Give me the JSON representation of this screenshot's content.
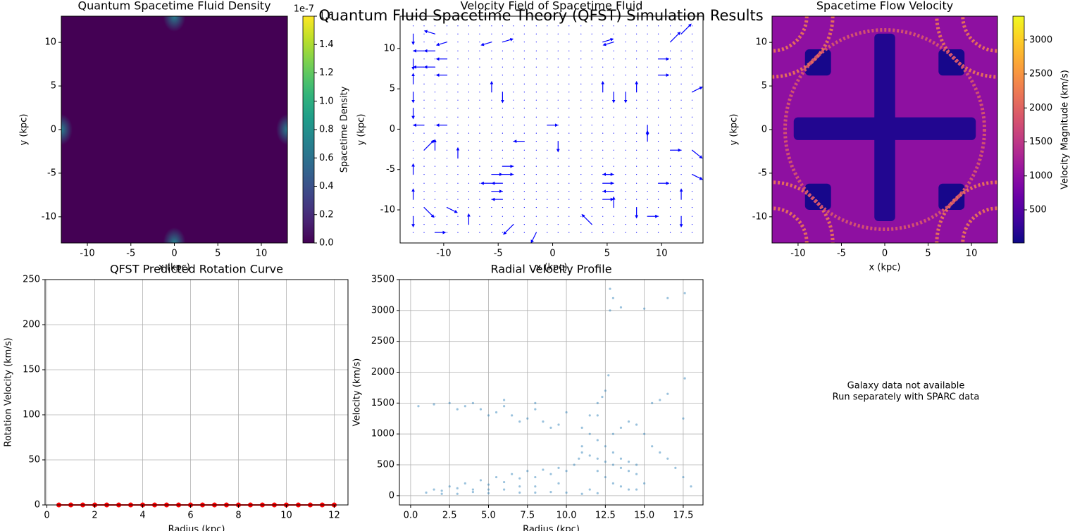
{
  "suptitle": "Quantum Fluid Spacetime Theory (QFST) Simulation Results",
  "chart_data": [
    {
      "type": "heatmap",
      "title": "Quantum Spacetime Fluid Density",
      "xlabel": "x (kpc)",
      "ylabel": "y (kpc)",
      "xlim": [
        -13,
        13
      ],
      "ylim": [
        -13,
        13
      ],
      "xticks": [
        -10,
        -5,
        0,
        5,
        10
      ],
      "yticks": [
        -10,
        -5,
        0,
        5,
        10
      ],
      "colormap": "viridis",
      "clim": [
        0,
        1.6
      ],
      "cticks": [
        {
          "value": 0,
          "label": "0.0"
        },
        0.2,
        0.4,
        0.6,
        0.8,
        {
          "value": 1,
          "label": "1.0"
        },
        1.2,
        1.4,
        1.6
      ],
      "offset_text": "1e-7",
      "clabel": "Spacetime Density",
      "background_value": 0,
      "peak_x": [
        0,
        0,
        13,
        -13
      ],
      "peak_y": [
        13,
        -13,
        0,
        0
      ],
      "peak_values": [
        0.7,
        0.7,
        0.7,
        0.7
      ]
    },
    {
      "type": "quiver",
      "title": "Velocity Field of Spacetime Fluid",
      "xlabel": "x (kpc)",
      "ylabel": "y (kpc)",
      "xlim": [
        -14,
        13.8
      ],
      "ylim": [
        -14.1,
        14
      ],
      "xticks": [
        -10,
        -5,
        0,
        5,
        10
      ],
      "yticks": [
        -10,
        -5,
        0,
        5,
        10
      ],
      "color": "#0000ff",
      "grid_x": [
        -12.8,
        -11.8,
        -10.8,
        -9.7,
        -8.7,
        -7.7,
        -6.7,
        -5.6,
        -4.6,
        -3.6,
        -2.6,
        -1.5,
        -0.5,
        0.5,
        1.5,
        2.6,
        3.6,
        4.6,
        5.6,
        6.7,
        7.7,
        8.7,
        9.7,
        10.8,
        11.8,
        12.8
      ],
      "grid_y": [
        -12.8,
        -11.8,
        -10.8,
        -9.7,
        -8.7,
        -7.7,
        -6.7,
        -5.6,
        -4.6,
        -3.6,
        -2.6,
        -1.5,
        -0.5,
        0.5,
        1.5,
        2.6,
        3.6,
        4.6,
        5.6,
        6.7,
        7.7,
        8.7,
        9.7,
        10.8,
        11.8,
        12.8
      ],
      "arrow_x": [
        -12.8,
        -12.8,
        -12.8,
        -12.8,
        -12.8,
        -12.8,
        -12.8,
        -12.8,
        -11.8,
        -11.8,
        -11.8,
        -11.8,
        -11.8,
        -10.8,
        -10.8,
        -10.8,
        -9.7,
        -9.7,
        -9.7,
        -9.7,
        -10.8,
        -8.7,
        -10.8,
        -9.7,
        -7.7,
        -5.6,
        -4.6,
        -5.6,
        -4.6,
        -5.6,
        -4.6,
        -4.6,
        -4.6,
        -5.6,
        -5.6,
        -4.6,
        -2.6,
        -0.5,
        0.5,
        -1.5,
        -3.6,
        4.6,
        5.6,
        4.6,
        5.6,
        4.6,
        5.6,
        4.6,
        5.6,
        4.6,
        5.6,
        3.6,
        7.7,
        8.7,
        9.7,
        9.7,
        10.8,
        11.8,
        12.8,
        12.8,
        12.8,
        11.8,
        11.8,
        10.8,
        9.7,
        8.7,
        8.7,
        7.7,
        6.7
      ],
      "arrow_y": [
        11.8,
        8.7,
        5.6,
        4.6,
        2.6,
        -5.6,
        -8.7,
        -10.8,
        9.7,
        7.7,
        0.5,
        -2.6,
        -9.7,
        11.8,
        9.7,
        7.7,
        10.8,
        8.7,
        6.7,
        0.5,
        -2.6,
        -3.6,
        -12.8,
        -9.7,
        -11.8,
        -5.6,
        -5.6,
        -6.7,
        -6.7,
        -7.7,
        -8.7,
        -4.6,
        4.6,
        4.6,
        10.8,
        10.8,
        -1.5,
        0.5,
        -1.5,
        -12.8,
        -11.8,
        -5.6,
        -5.6,
        -6.7,
        -7.7,
        -8.7,
        -9.7,
        10.8,
        10.8,
        4.6,
        4.6,
        -11.8,
        -9.7,
        -10.8,
        6.7,
        8.7,
        10.8,
        11.8,
        4.6,
        -2.6,
        -5.6,
        -8.7,
        -10.8,
        -2.6,
        -6.7,
        -1.5,
        0.5,
        4.6,
        4.6
      ],
      "u": [
        0,
        0,
        0,
        0,
        0,
        0,
        0,
        0,
        -1,
        -1,
        -1,
        1,
        1,
        -1,
        -1,
        -1,
        -1,
        -1,
        -1,
        -1,
        0,
        0,
        1,
        1,
        0,
        1,
        1,
        -1,
        -1,
        1,
        -1,
        1,
        0,
        0,
        -1,
        1,
        -1,
        1,
        0,
        -0.5,
        -1,
        1,
        -1,
        1,
        -1,
        1,
        0,
        1,
        -1,
        0,
        0,
        -1,
        0,
        1,
        1,
        1,
        1,
        1,
        1,
        1,
        1,
        0,
        0,
        1,
        1,
        0,
        0,
        0,
        0
      ],
      "v": [
        -1,
        -1,
        1,
        -1,
        -1,
        1,
        1,
        -1,
        0,
        0,
        0,
        1,
        -1,
        0.3,
        0,
        0,
        -0.3,
        0,
        0,
        0,
        1,
        1,
        0,
        -0.5,
        1,
        0,
        0,
        0,
        0,
        0,
        0,
        0,
        -1,
        1,
        -0.3,
        0.3,
        0,
        0,
        -1,
        -1,
        -1,
        0,
        0,
        0,
        0,
        0,
        1,
        0.3,
        -0.3,
        1,
        -1,
        1,
        -1,
        0,
        0,
        0,
        1,
        1,
        0.5,
        -0.8,
        -0.5,
        1,
        -1,
        0,
        0,
        1,
        -1,
        1,
        -1
      ]
    },
    {
      "type": "heatmap",
      "title": "Spacetime Flow Velocity",
      "xlabel": "x (kpc)",
      "ylabel": "y (kpc)",
      "xlim": [
        -13,
        13
      ],
      "ylim": [
        -13,
        13
      ],
      "xticks": [
        -10,
        -5,
        0,
        5,
        10
      ],
      "yticks": [
        -10,
        -5,
        0,
        5,
        10
      ],
      "colormap": "plasma",
      "clim": [
        13,
        3350
      ],
      "cticks": [
        500,
        1000,
        1500,
        2000,
        2500,
        3000
      ],
      "clabel": "Velocity Magnitude (km/s)",
      "background_value": 1000,
      "patches": [
        {
          "x0": -1.2,
          "x1": 1.2,
          "y0": -10.5,
          "y1": 11,
          "value": 150
        },
        {
          "x0": -10.5,
          "x1": 10.5,
          "y0": -1.2,
          "y1": 1.4,
          "value": 150
        },
        {
          "x0": -9.2,
          "x1": -6.2,
          "y0": 6.2,
          "y1": 9.2,
          "value": 80
        },
        {
          "x0": 6.2,
          "x1": 9.2,
          "y0": 6.2,
          "y1": 9.2,
          "value": 80
        },
        {
          "x0": -9.2,
          "x1": -6.2,
          "y0": -9.2,
          "y1": -6.2,
          "value": 80
        },
        {
          "x0": 6.2,
          "x1": 9.2,
          "y0": -9.2,
          "y1": -6.2,
          "value": 80
        }
      ],
      "rings": [
        {
          "cx": -13,
          "cy": 13,
          "r": 4,
          "value": 2100
        },
        {
          "cx": -13,
          "cy": 13,
          "r": 7,
          "value": 2100
        },
        {
          "cx": 13,
          "cy": 13,
          "r": 4,
          "value": 2100
        },
        {
          "cx": 13,
          "cy": 13,
          "r": 7,
          "value": 2100
        },
        {
          "cx": -13,
          "cy": -13,
          "r": 4,
          "value": 2100
        },
        {
          "cx": -13,
          "cy": -13,
          "r": 7,
          "value": 2100
        },
        {
          "cx": 13,
          "cy": -13,
          "r": 4,
          "value": 2100
        },
        {
          "cx": 13,
          "cy": -13,
          "r": 7,
          "value": 2100
        },
        {
          "cx": 0,
          "cy": 0,
          "r": 11.5,
          "value": 1800
        }
      ]
    },
    {
      "type": "line",
      "title": "QFST Predicted Rotation Curve",
      "xlabel": "Radius (kpc)",
      "ylabel": "Rotation Velocity (km/s)",
      "xlim": [
        -0.075,
        12.575
      ],
      "ylim": [
        0,
        250
      ],
      "xticks": [
        0,
        2,
        4,
        6,
        8,
        10,
        12
      ],
      "yticks": [
        0,
        50,
        100,
        150,
        200,
        250
      ],
      "grid": true,
      "color": "#ff0000",
      "x": [
        0.5,
        1,
        1.5,
        2,
        2.5,
        3,
        3.5,
        4,
        4.5,
        5,
        5.5,
        6,
        6.5,
        7,
        7.5,
        8,
        8.5,
        9,
        9.5,
        10,
        10.5,
        11,
        11.5,
        12
      ],
      "values": [
        0,
        0,
        0,
        0,
        0,
        0,
        0,
        0,
        0,
        0,
        0,
        0,
        0,
        0,
        0,
        0,
        0,
        0,
        0,
        0,
        0,
        0,
        0,
        0
      ]
    },
    {
      "type": "scatter",
      "title": "Radial Velocity Profile",
      "xlabel": "Radius (kpc)",
      "ylabel": "Velocity (km/s)",
      "xlim": [
        -0.72,
        18.77
      ],
      "ylim": [
        -150,
        3500
      ],
      "xticks": [
        {
          "value": 0,
          "label": "0.0"
        },
        2.5,
        {
          "value": 5,
          "label": "5.0"
        },
        7.5,
        {
          "value": 10,
          "label": "10.0"
        },
        12.5,
        {
          "value": 15,
          "label": "15.0"
        },
        17.5
      ],
      "yticks": [
        0,
        500,
        1000,
        1500,
        2000,
        2500,
        3000,
        3500
      ],
      "grid": true,
      "color": "#1f77b4",
      "x": [
        1,
        1.5,
        2,
        2.5,
        3,
        3.5,
        4,
        4.5,
        5,
        5.5,
        6,
        6.5,
        7,
        7.5,
        8,
        8.5,
        9,
        9.5,
        10,
        3,
        5,
        7,
        9,
        6,
        8,
        4,
        2,
        9.5,
        8,
        7,
        5,
        0.5,
        1.5,
        2.5,
        3.5,
        4.5,
        5.5,
        6.5,
        7.5,
        8.5,
        9.5,
        3,
        5,
        7,
        9,
        4,
        6,
        8,
        10,
        6,
        8,
        10.5,
        11,
        11.5,
        12,
        12.5,
        12.7,
        11,
        11.5,
        12,
        10.8,
        12.3,
        11,
        11.5,
        12,
        12.5,
        13,
        13.5,
        14,
        14.5,
        12,
        12.5,
        13,
        13.5,
        14,
        14.5,
        13,
        13.5,
        14,
        14.5,
        15,
        12,
        12.5,
        13,
        13.5,
        14,
        14.5,
        15,
        15.5,
        16,
        16.5,
        16,
        16.5,
        17,
        17.5,
        18,
        15.5,
        17.6,
        17.5,
        12.8,
        13,
        13.5,
        15,
        17.6,
        12.8,
        16.5,
        10,
        11,
        12,
        11.5
      ],
      "values": [
        50,
        100,
        80,
        150,
        120,
        200,
        100,
        250,
        180,
        300,
        220,
        350,
        280,
        400,
        300,
        420,
        350,
        450,
        400,
        30,
        40,
        50,
        60,
        100,
        150,
        60,
        30,
        200,
        50,
        150,
        100,
        1450,
        1480,
        1500,
        1450,
        1400,
        1350,
        1300,
        1250,
        1200,
        1150,
        1400,
        1300,
        1200,
        1100,
        1500,
        1450,
        1400,
        1350,
        1550,
        1500,
        500,
        800,
        1000,
        1300,
        1700,
        1950,
        1100,
        1300,
        1500,
        600,
        1600,
        700,
        650,
        600,
        550,
        500,
        450,
        400,
        350,
        900,
        800,
        700,
        600,
        550,
        500,
        1000,
        1100,
        1200,
        1150,
        1000,
        400,
        300,
        200,
        150,
        100,
        100,
        200,
        1500,
        1550,
        1650,
        700,
        600,
        450,
        300,
        150,
        800,
        1900,
        1250,
        3350,
        3200,
        3050,
        3030,
        3280,
        3000,
        3200,
        50,
        30,
        40,
        100
      ]
    },
    {
      "type": "text",
      "lines": [
        "Galaxy data not available",
        "Run separately with SPARC data"
      ]
    }
  ]
}
